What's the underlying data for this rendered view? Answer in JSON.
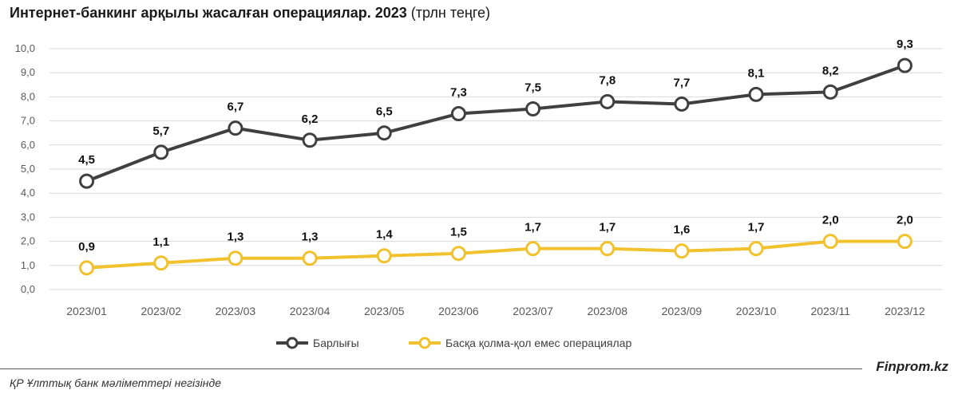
{
  "header": {
    "title": "Интернет-банкинг арқылы жасалған операциялар. 2023",
    "unit": "(трлн теңге)"
  },
  "footer": {
    "source": "ҚР Ұлттық банк мәліметтері негізінде",
    "brand": "Finprom.kz"
  },
  "chart_data": {
    "type": "line",
    "x": [
      "2023/01",
      "2023/02",
      "2023/03",
      "2023/04",
      "2023/05",
      "2023/06",
      "2023/07",
      "2023/08",
      "2023/09",
      "2023/10",
      "2023/11",
      "2023/12"
    ],
    "series": [
      {
        "name": "Барлығы",
        "values": [
          4.5,
          5.7,
          6.7,
          6.2,
          6.5,
          7.3,
          7.5,
          7.8,
          7.7,
          8.1,
          8.2,
          9.3
        ],
        "labels": [
          "4,5",
          "5,7",
          "6,7",
          "6,2",
          "6,5",
          "7,3",
          "7,5",
          "7,8",
          "7,7",
          "8,1",
          "8,2",
          "9,3"
        ],
        "color": "#404040"
      },
      {
        "name": "Басқа қолма-қол емес операциялар",
        "values": [
          0.9,
          1.1,
          1.3,
          1.3,
          1.4,
          1.5,
          1.7,
          1.7,
          1.6,
          1.7,
          2.0,
          2.0
        ],
        "labels": [
          "0,9",
          "1,1",
          "1,3",
          "1,3",
          "1,4",
          "1,5",
          "1,7",
          "1,7",
          "1,6",
          "1,7",
          "2,0",
          "2,0"
        ],
        "color": "#F2C12E"
      }
    ],
    "ylim": [
      0,
      10
    ],
    "yticks": [
      0,
      1,
      2,
      3,
      4,
      5,
      6,
      7,
      8,
      9,
      10
    ],
    "ytick_labels": [
      "0,0",
      "1,0",
      "2,0",
      "3,0",
      "4,0",
      "5,0",
      "6,0",
      "7,0",
      "8,0",
      "9,0",
      "10,0"
    ],
    "grid": true,
    "legend_position": "bottom"
  }
}
